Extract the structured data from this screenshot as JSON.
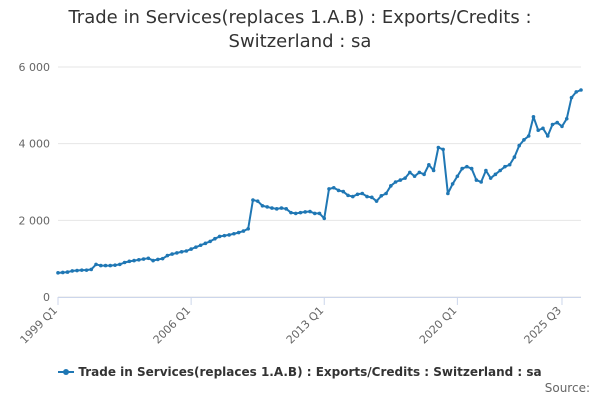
{
  "chart_data": {
    "type": "line",
    "title_lines": [
      "Trade in Services(replaces 1.A.B) : Exports/Credits :",
      "Switzerland : sa"
    ],
    "xlabel": "",
    "ylabel": "",
    "ylim": [
      0,
      6000
    ],
    "yticks": [
      0,
      2000,
      4000,
      6000
    ],
    "ytick_labels": [
      "0",
      "2 000",
      "4 000",
      "6 000"
    ],
    "xtick_labels": [
      "1999 Q1",
      "2006 Q1",
      "2013 Q1",
      "2020 Q1",
      "2025 Q3"
    ],
    "xtick_index": [
      0,
      28,
      56,
      84,
      106
    ],
    "grid": true,
    "legend_position": "bottom",
    "series": [
      {
        "name": "Trade in Services(replaces 1.A.B) : Exports/Credits : Switzerland : sa",
        "color": "#1f77b4",
        "values": [
          630,
          640,
          650,
          680,
          690,
          700,
          700,
          720,
          850,
          820,
          820,
          820,
          830,
          850,
          900,
          930,
          950,
          970,
          990,
          1010,
          950,
          980,
          1000,
          1080,
          1120,
          1150,
          1180,
          1200,
          1250,
          1300,
          1350,
          1400,
          1450,
          1520,
          1580,
          1600,
          1620,
          1650,
          1680,
          1720,
          1780,
          2530,
          2500,
          2380,
          2350,
          2320,
          2300,
          2320,
          2300,
          2200,
          2180,
          2200,
          2220,
          2230,
          2180,
          2180,
          2050,
          2820,
          2850,
          2780,
          2750,
          2650,
          2620,
          2680,
          2700,
          2620,
          2600,
          2500,
          2640,
          2700,
          2900,
          3000,
          3050,
          3100,
          3250,
          3150,
          3250,
          3200,
          3450,
          3300,
          3900,
          3850,
          2700,
          2950,
          3150,
          3350,
          3400,
          3350,
          3050,
          3000,
          3300,
          3100,
          3200,
          3300,
          3400,
          3450,
          3650,
          3950,
          4100,
          4200,
          4700,
          4350,
          4400,
          4200,
          4500,
          4550,
          4450,
          4650,
          5200,
          5350,
          5400
        ]
      }
    ]
  },
  "legend": {
    "label": "Trade in Services(replaces 1.A.B) : Exports/Credits : Switzerland : sa"
  },
  "credits": "Source:"
}
